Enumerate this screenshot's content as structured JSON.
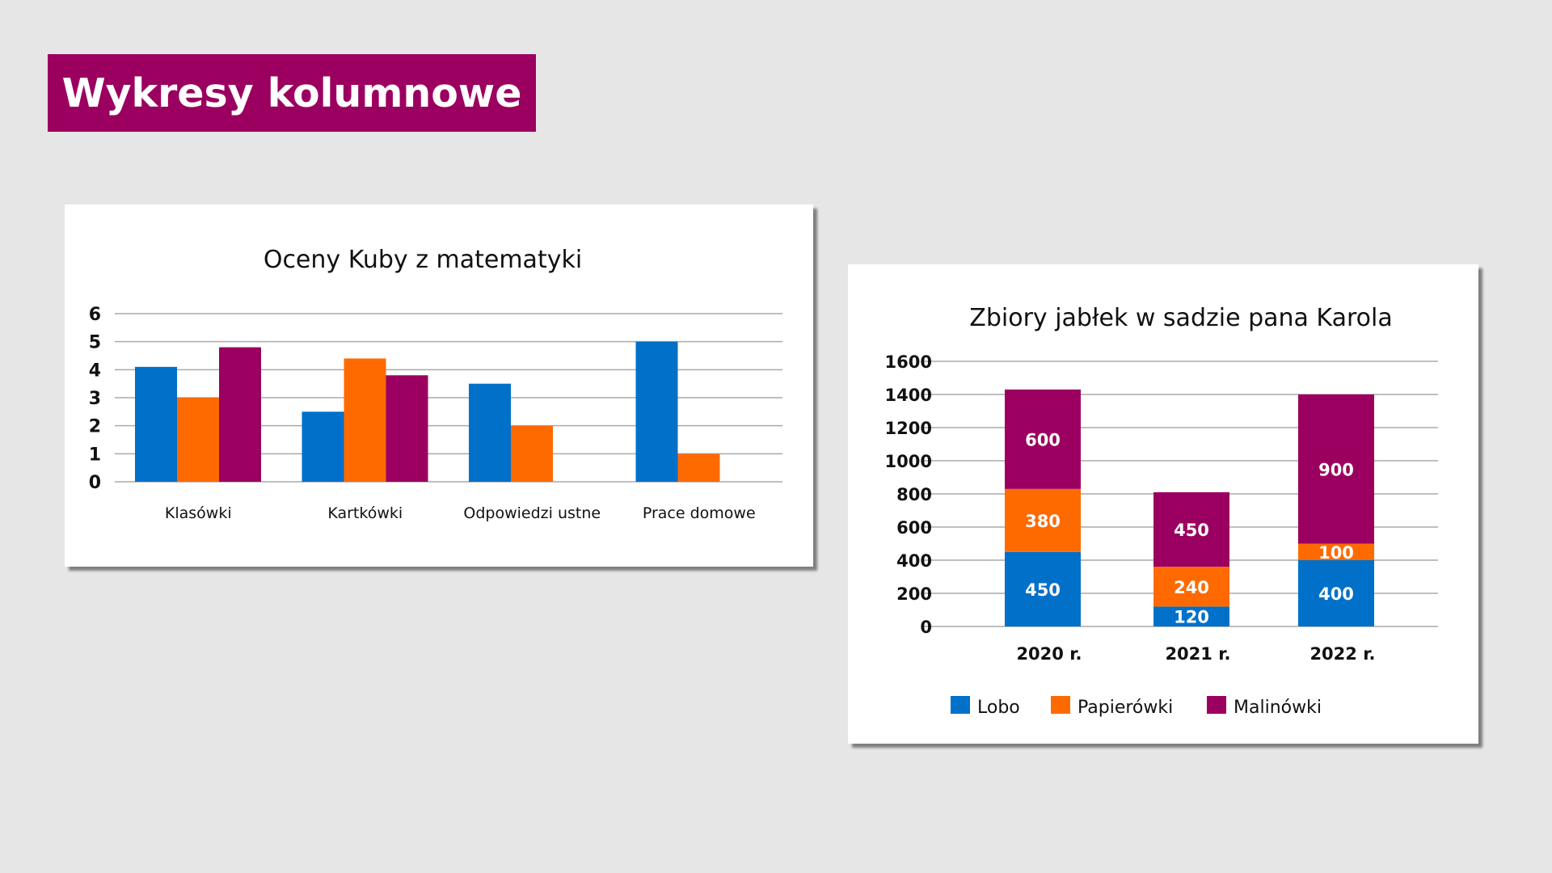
{
  "page": {
    "title": "Wykresy kolumnowe"
  },
  "colors": {
    "banner": "#9b0060",
    "blue": "#0070c8",
    "orange": "#ff6a00",
    "purple": "#9b0060",
    "grid": "#aaaaaa"
  },
  "chart_data": [
    {
      "type": "bar",
      "title": "Oceny Kuby z matematyki",
      "categories": [
        "Klasówki",
        "Kartkówki",
        "Odpowiedzi ustne",
        "Prace domowe"
      ],
      "series": [
        {
          "values": [
            4.1,
            2.5,
            3.5,
            5.0
          ],
          "color": "#0070c8"
        },
        {
          "values": [
            3.0,
            4.4,
            2.0,
            1.0
          ],
          "color": "#ff6a00"
        },
        {
          "values": [
            4.8,
            3.8,
            null,
            null
          ],
          "color": "#9b0060"
        }
      ],
      "yticks": [
        "0",
        "1",
        "2",
        "3",
        "4",
        "5",
        "6"
      ],
      "ylim": [
        0,
        6
      ],
      "grid": true,
      "legend": "none"
    },
    {
      "type": "bar",
      "stacked": true,
      "title": "Zbiory jabłek w sadzie pana Karola",
      "categories": [
        "2020 r.",
        "2021 r.",
        "2022 r."
      ],
      "series": [
        {
          "name": "Lobo",
          "values": [
            450,
            120,
            400
          ],
          "labels": [
            "450",
            "120",
            "400"
          ],
          "color": "#0070c8"
        },
        {
          "name": "Papierówki",
          "values": [
            380,
            240,
            100
          ],
          "labels": [
            "380",
            "240",
            "100"
          ],
          "color": "#ff6a00"
        },
        {
          "name": "Malinówki",
          "values": [
            600,
            450,
            900
          ],
          "labels": [
            "600",
            "450",
            "900"
          ],
          "color": "#9b0060"
        }
      ],
      "yticks": [
        "0",
        "200",
        "400",
        "600",
        "800",
        "1000",
        "1200",
        "1400",
        "1600"
      ],
      "ylim": [
        0,
        1600
      ],
      "grid": true,
      "legend": "bottom"
    }
  ]
}
